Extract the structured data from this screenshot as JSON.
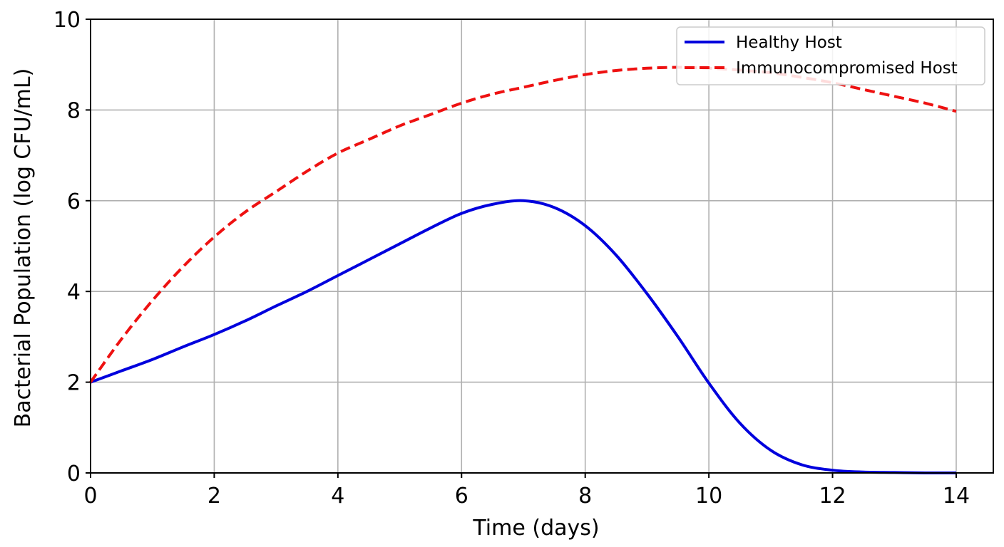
{
  "chart_data": {
    "type": "line",
    "title": "",
    "xlabel": "Time (days)",
    "ylabel": "Bacterial Population (log CFU/mL)",
    "xlim": [
      0,
      14.6
    ],
    "ylim": [
      0,
      10
    ],
    "xticks": [
      0,
      2,
      4,
      6,
      8,
      10,
      12,
      14
    ],
    "yticks": [
      0,
      2,
      4,
      6,
      8,
      10
    ],
    "grid": true,
    "legend_position": "top-right",
    "series": [
      {
        "name": "Healthy Host",
        "color": "#0000dd",
        "style": "solid",
        "x": [
          0,
          0.5,
          1,
          1.5,
          2,
          2.5,
          3,
          3.5,
          4,
          4.5,
          5,
          5.5,
          6,
          6.5,
          7,
          7.5,
          8,
          8.5,
          9,
          9.5,
          10,
          10.5,
          11,
          11.5,
          12,
          12.5,
          13,
          13.5,
          14
        ],
        "y": [
          2.0,
          2.25,
          2.5,
          2.78,
          3.05,
          3.35,
          3.68,
          4.0,
          4.35,
          4.7,
          5.05,
          5.4,
          5.72,
          5.92,
          6.0,
          5.85,
          5.45,
          4.8,
          3.95,
          3.0,
          1.98,
          1.1,
          0.5,
          0.18,
          0.06,
          0.02,
          0.01,
          0.0,
          0.0
        ]
      },
      {
        "name": "Immunocompromised Host",
        "color": "#ee1111",
        "style": "dashed",
        "x": [
          0,
          0.5,
          1,
          1.5,
          2,
          2.5,
          3,
          3.5,
          4,
          4.5,
          5,
          5.5,
          6,
          6.5,
          7,
          7.5,
          8,
          8.5,
          9,
          9.5,
          10,
          10.5,
          11,
          11.5,
          12,
          12.5,
          13,
          13.5,
          14
        ],
        "y": [
          2.0,
          2.95,
          3.8,
          4.55,
          5.2,
          5.75,
          6.2,
          6.65,
          7.05,
          7.35,
          7.65,
          7.9,
          8.15,
          8.35,
          8.5,
          8.65,
          8.78,
          8.87,
          8.92,
          8.94,
          8.92,
          8.88,
          8.82,
          8.72,
          8.6,
          8.45,
          8.3,
          8.15,
          7.97
        ]
      }
    ]
  }
}
